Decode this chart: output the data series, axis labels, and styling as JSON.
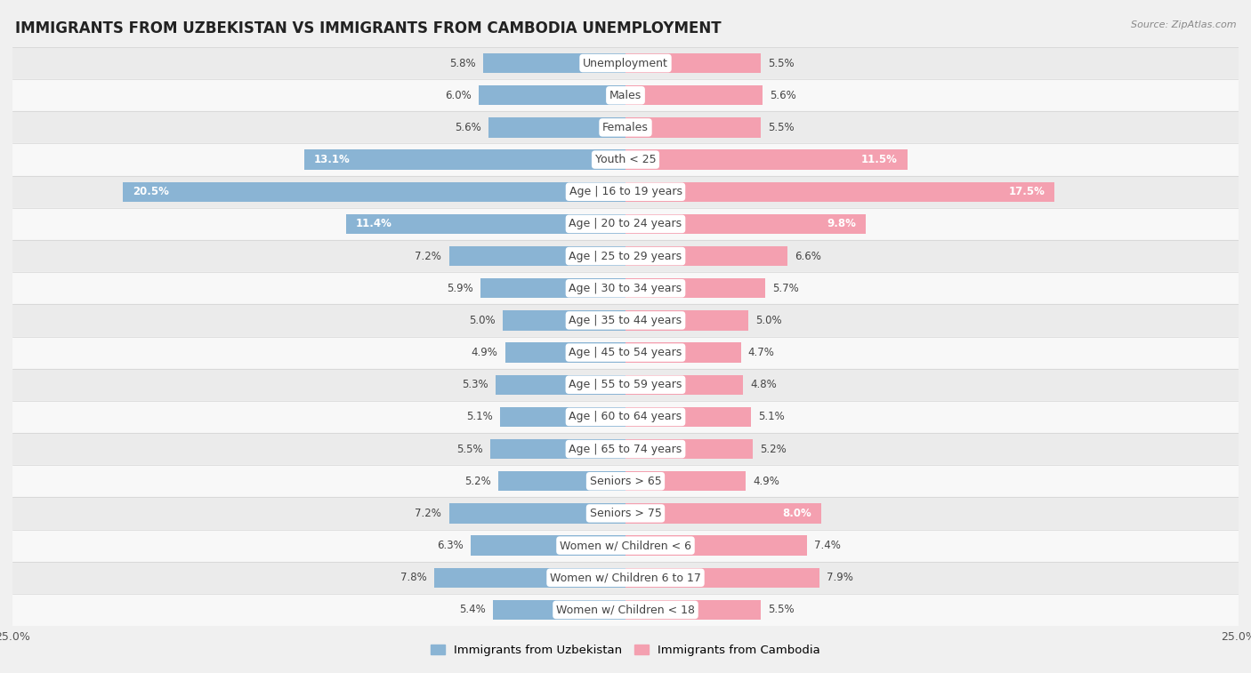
{
  "title": "IMMIGRANTS FROM UZBEKISTAN VS IMMIGRANTS FROM CAMBODIA UNEMPLOYMENT",
  "source": "Source: ZipAtlas.com",
  "categories": [
    "Unemployment",
    "Males",
    "Females",
    "Youth < 25",
    "Age | 16 to 19 years",
    "Age | 20 to 24 years",
    "Age | 25 to 29 years",
    "Age | 30 to 34 years",
    "Age | 35 to 44 years",
    "Age | 45 to 54 years",
    "Age | 55 to 59 years",
    "Age | 60 to 64 years",
    "Age | 65 to 74 years",
    "Seniors > 65",
    "Seniors > 75",
    "Women w/ Children < 6",
    "Women w/ Children 6 to 17",
    "Women w/ Children < 18"
  ],
  "uzbekistan_values": [
    5.8,
    6.0,
    5.6,
    13.1,
    20.5,
    11.4,
    7.2,
    5.9,
    5.0,
    4.9,
    5.3,
    5.1,
    5.5,
    5.2,
    7.2,
    6.3,
    7.8,
    5.4
  ],
  "cambodia_values": [
    5.5,
    5.6,
    5.5,
    11.5,
    17.5,
    9.8,
    6.6,
    5.7,
    5.0,
    4.7,
    4.8,
    5.1,
    5.2,
    4.9,
    8.0,
    7.4,
    7.9,
    5.5
  ],
  "uzbekistan_color": "#8ab4d4",
  "cambodia_color": "#f4a0b0",
  "uzbekistan_label": "Immigrants from Uzbekistan",
  "cambodia_label": "Immigrants from Cambodia",
  "background_color": "#f0f0f0",
  "row_even_color": "#e8e8e8",
  "row_odd_color": "#fafafa",
  "bar_row_color_even": "#d8d8d8",
  "bar_row_color_odd": "#f0f0f0",
  "xlim": 25.0,
  "title_fontsize": 12,
  "label_fontsize": 9.0,
  "value_fontsize": 8.5
}
